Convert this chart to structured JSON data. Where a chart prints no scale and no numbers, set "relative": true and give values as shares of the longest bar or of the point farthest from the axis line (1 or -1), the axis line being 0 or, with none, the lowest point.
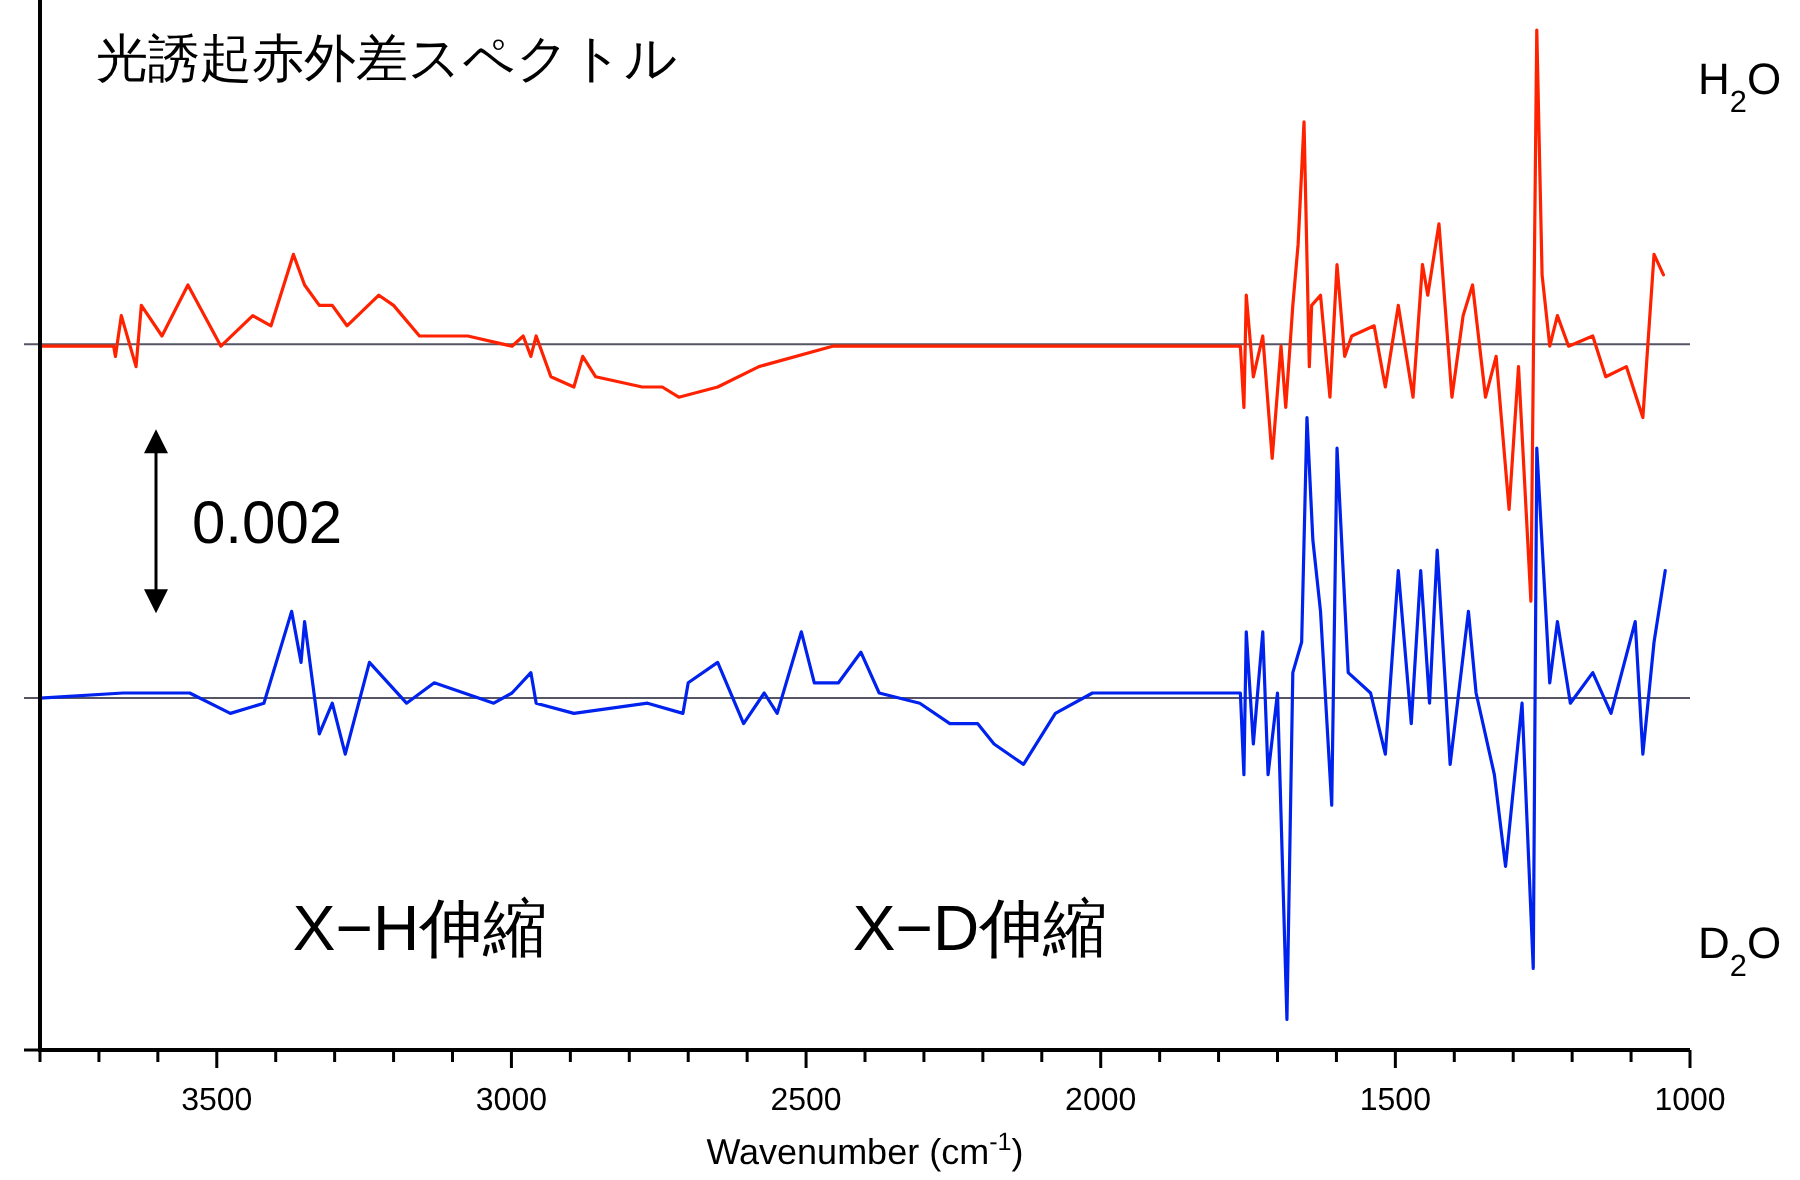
{
  "chart_data": {
    "type": "line",
    "title": "光誘起赤外差スペクトル",
    "xlabel": "Wavenumber (cm$^{-1}$)",
    "relative": true,
    "grid": false,
    "xlim": [
      3800,
      1000
    ],
    "xticks": [
      {
        "value": 3800,
        "label": null
      },
      {
        "value": 3700,
        "label": null
      },
      {
        "value": 3600,
        "label": null
      },
      3500,
      {
        "value": 3400,
        "label": null
      },
      {
        "value": 3300,
        "label": null
      },
      {
        "value": 3200,
        "label": null
      },
      {
        "value": 3100,
        "label": null
      },
      3000,
      {
        "value": 2900,
        "label": null
      },
      {
        "value": 2800,
        "label": null
      },
      {
        "value": 2700,
        "label": null
      },
      {
        "value": 2600,
        "label": null
      },
      2500,
      {
        "value": 2400,
        "label": null
      },
      {
        "value": 2300,
        "label": null
      },
      {
        "value": 2200,
        "label": null
      },
      {
        "value": 2100,
        "label": null
      },
      2000,
      {
        "value": 1900,
        "label": null
      },
      {
        "value": 1800,
        "label": null
      },
      {
        "value": 1700,
        "label": null
      },
      {
        "value": 1600,
        "label": null
      },
      1500,
      {
        "value": 1400,
        "label": null
      },
      {
        "value": 1300,
        "label": null
      },
      {
        "value": 1200,
        "label": null
      },
      {
        "value": 1100,
        "label": null
      },
      1000
    ],
    "ref_lines": [
      {
        "axis": "y",
        "value": 0.692,
        "color": "#555566"
      },
      {
        "axis": "y",
        "value": 0.345,
        "color": "#555566"
      }
    ],
    "annotations": [
      "0.002",
      "X−H伸縮",
      "X−D伸縮"
    ],
    "series": [
      {
        "name": "H$_{2}$O",
        "color": "#ff2200",
        "x": [
          3800,
          3675,
          3672,
          3662,
          3637,
          3628,
          3593,
          3549,
          3493,
          3439,
          3408,
          3370,
          3351,
          3326,
          3304,
          3279,
          3225,
          3200,
          3156,
          3074,
          2999,
          2980,
          2967,
          2958,
          2933,
          2894,
          2879,
          2857,
          2778,
          2744,
          2716,
          2650,
          2580,
          2455,
          2433,
          2194,
          1763,
          1757,
          1753,
          1741,
          1725,
          1709,
          1694,
          1686,
          1674,
          1665,
          1655,
          1646,
          1642,
          1627,
          1611,
          1599,
          1586,
          1574,
          1536,
          1517,
          1495,
          1470,
          1454,
          1445,
          1426,
          1404,
          1385,
          1369,
          1347,
          1329,
          1307,
          1291,
          1270,
          1260,
          1251,
          1238,
          1225,
          1206,
          1165,
          1143,
          1108,
          1080,
          1061,
          1045
        ],
        "values": [
          0.69,
          0.69,
          0.68,
          0.72,
          0.67,
          0.73,
          0.7,
          0.75,
          0.69,
          0.72,
          0.71,
          0.78,
          0.75,
          0.73,
          0.73,
          0.71,
          0.74,
          0.73,
          0.7,
          0.7,
          0.69,
          0.7,
          0.68,
          0.7,
          0.66,
          0.65,
          0.68,
          0.66,
          0.65,
          0.65,
          0.64,
          0.65,
          0.67,
          0.69,
          0.69,
          0.69,
          0.69,
          0.63,
          0.74,
          0.66,
          0.7,
          0.58,
          0.69,
          0.63,
          0.73,
          0.79,
          0.91,
          0.67,
          0.73,
          0.74,
          0.64,
          0.77,
          0.68,
          0.7,
          0.71,
          0.65,
          0.73,
          0.64,
          0.77,
          0.74,
          0.81,
          0.64,
          0.72,
          0.75,
          0.64,
          0.68,
          0.53,
          0.67,
          0.44,
          1.0,
          0.76,
          0.69,
          0.72,
          0.69,
          0.7,
          0.66,
          0.67,
          0.62,
          0.78,
          0.76
        ]
      },
      {
        "name": "D$_{2}$O",
        "color": "#0022ee",
        "x": [
          3800,
          3659,
          3625,
          3546,
          3477,
          3420,
          3373,
          3357,
          3351,
          3326,
          3304,
          3282,
          3241,
          3178,
          3131,
          3030,
          2999,
          2967,
          2958,
          2894,
          2769,
          2709,
          2700,
          2650,
          2606,
          2571,
          2549,
          2508,
          2486,
          2445,
          2407,
          2376,
          2307,
          2256,
          2209,
          2181,
          2131,
          2077,
          2014,
          1763,
          1757,
          1753,
          1741,
          1725,
          1716,
          1700,
          1684,
          1674,
          1659,
          1650,
          1640,
          1627,
          1608,
          1599,
          1580,
          1542,
          1517,
          1495,
          1473,
          1457,
          1442,
          1429,
          1407,
          1376,
          1363,
          1332,
          1313,
          1285,
          1266,
          1260,
          1238,
          1225,
          1203,
          1165,
          1134,
          1093,
          1080,
          1061,
          1042
        ],
        "values": [
          0.345,
          0.35,
          0.35,
          0.35,
          0.33,
          0.34,
          0.43,
          0.38,
          0.42,
          0.31,
          0.34,
          0.29,
          0.38,
          0.34,
          0.36,
          0.34,
          0.35,
          0.37,
          0.34,
          0.33,
          0.34,
          0.33,
          0.36,
          0.38,
          0.32,
          0.35,
          0.33,
          0.41,
          0.36,
          0.36,
          0.39,
          0.35,
          0.34,
          0.32,
          0.32,
          0.3,
          0.28,
          0.33,
          0.35,
          0.35,
          0.27,
          0.41,
          0.3,
          0.41,
          0.27,
          0.35,
          0.03,
          0.37,
          0.4,
          0.62,
          0.5,
          0.43,
          0.24,
          0.59,
          0.37,
          0.35,
          0.29,
          0.47,
          0.32,
          0.47,
          0.34,
          0.49,
          0.28,
          0.43,
          0.35,
          0.27,
          0.18,
          0.34,
          0.08,
          0.59,
          0.36,
          0.42,
          0.34,
          0.37,
          0.33,
          0.42,
          0.29,
          0.4,
          0.47
        ]
      }
    ]
  }
}
